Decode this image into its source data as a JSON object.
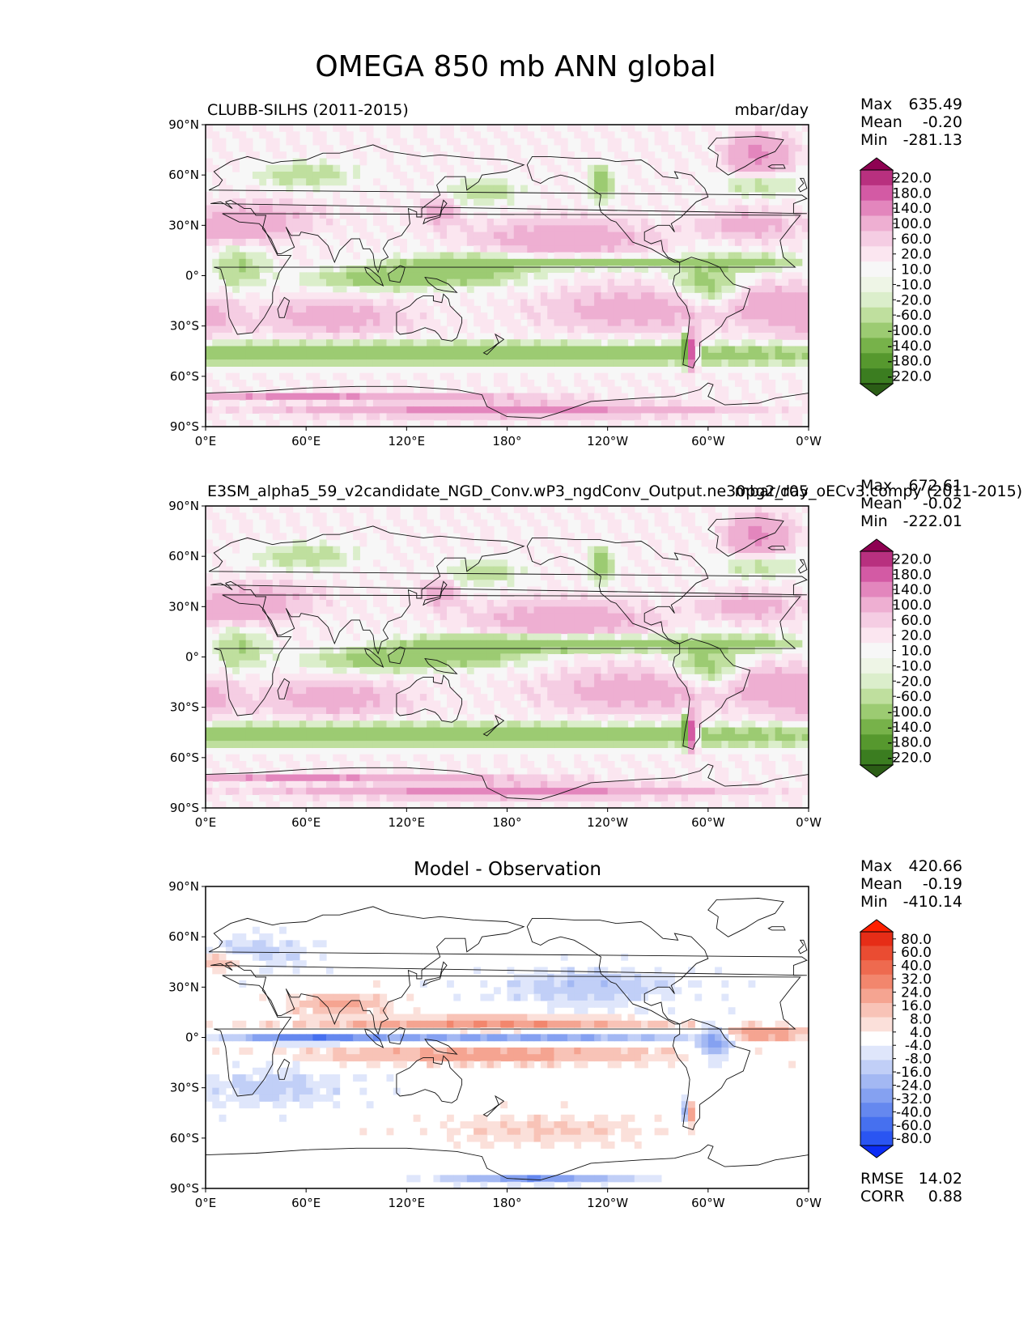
{
  "figure_title": "OMEGA 850 mb ANN global",
  "colors": {
    "omega": [
      "#2b5d16",
      "#3b7d20",
      "#56982e",
      "#77b24a",
      "#9ccb72",
      "#bfdf9e",
      "#dbeecb",
      "#eef5e6",
      "#f7f7f7",
      "#fbe6f0",
      "#f5cde3",
      "#eeafd2",
      "#e386bd",
      "#d35aa4",
      "#b8307f",
      "#8e0152"
    ],
    "diff": [
      "#0b2cf5",
      "#2a55f2",
      "#4670ef",
      "#6588ef",
      "#85a1f1",
      "#a3b8f3",
      "#c1cff7",
      "#dfe6fb",
      "#ffffff",
      "#fbe0da",
      "#f8c3b7",
      "#f5a491",
      "#f2866d",
      "#ee6a4f",
      "#ea4c32",
      "#e62d17",
      "#ff2000"
    ]
  },
  "chart_data": [
    {
      "type": "heatmap",
      "name": "test",
      "title_left": "CLUBB-SILHS (2011-2015)",
      "title_right": "mbar/day",
      "stats": {
        "max_label": "Max",
        "max": "635.49",
        "mean_label": "Mean",
        "mean": "-0.20",
        "min_label": "Min",
        "min": "-281.13"
      },
      "xticks": [
        "0°E",
        "60°E",
        "120°E",
        "180°",
        "120°W",
        "60°W",
        "0°W"
      ],
      "yticks": [
        "90°N",
        "60°N",
        "30°N",
        "0°",
        "30°S",
        "60°S",
        "90°S"
      ],
      "xlim": [
        0,
        360
      ],
      "ylim": [
        -90,
        90
      ],
      "levels": [
        "220.0",
        "180.0",
        "140.0",
        "100.0",
        "60.0",
        "20.0",
        "10.0",
        "-10.0",
        "-20.0",
        "-60.0",
        "-100.0",
        "-140.0",
        "-180.0",
        "-220.0"
      ]
    },
    {
      "type": "heatmap",
      "name": "reference",
      "title_left": "E3SM_alpha5_59_v2candidate_NGD_Conv.wP3_ngdConv_Output.ne30pg2_r05_oECv3.compy (2011-2015)",
      "title_right": "mbar/day",
      "stats": {
        "max_label": "Max",
        "max": "672.61",
        "mean_label": "Mean",
        "mean": "-0.02",
        "min_label": "Min",
        "min": "-222.01"
      },
      "xticks": [
        "0°E",
        "60°E",
        "120°E",
        "180°",
        "120°W",
        "60°W",
        "0°W"
      ],
      "yticks": [
        "90°N",
        "60°N",
        "30°N",
        "0°",
        "30°S",
        "60°S",
        "90°S"
      ],
      "xlim": [
        0,
        360
      ],
      "ylim": [
        -90,
        90
      ],
      "levels": [
        "220.0",
        "180.0",
        "140.0",
        "100.0",
        "60.0",
        "20.0",
        "10.0",
        "-10.0",
        "-20.0",
        "-60.0",
        "-100.0",
        "-140.0",
        "-180.0",
        "-220.0"
      ]
    },
    {
      "type": "heatmap",
      "name": "difference",
      "title_center": "Model - Observation",
      "stats": {
        "max_label": "Max",
        "max": "420.66",
        "mean_label": "Mean",
        "mean": "-0.19",
        "min_label": "Min",
        "min": "-410.14"
      },
      "metrics": {
        "rmse_label": "RMSE",
        "rmse": "14.02",
        "corr_label": "CORR",
        "corr": "0.88"
      },
      "xticks": [
        "0°E",
        "60°E",
        "120°E",
        "180°",
        "120°W",
        "60°W",
        "0°W"
      ],
      "yticks": [
        "90°N",
        "60°N",
        "30°N",
        "0°",
        "30°S",
        "60°S",
        "90°S"
      ],
      "xlim": [
        0,
        360
      ],
      "ylim": [
        -90,
        90
      ],
      "levels": [
        "80.0",
        "60.0",
        "40.0",
        "32.0",
        "24.0",
        "16.0",
        "8.0",
        "4.0",
        "-4.0",
        "-8.0",
        "-16.0",
        "-24.0",
        "-32.0",
        "-40.0",
        "-60.0",
        "-80.0"
      ]
    }
  ]
}
